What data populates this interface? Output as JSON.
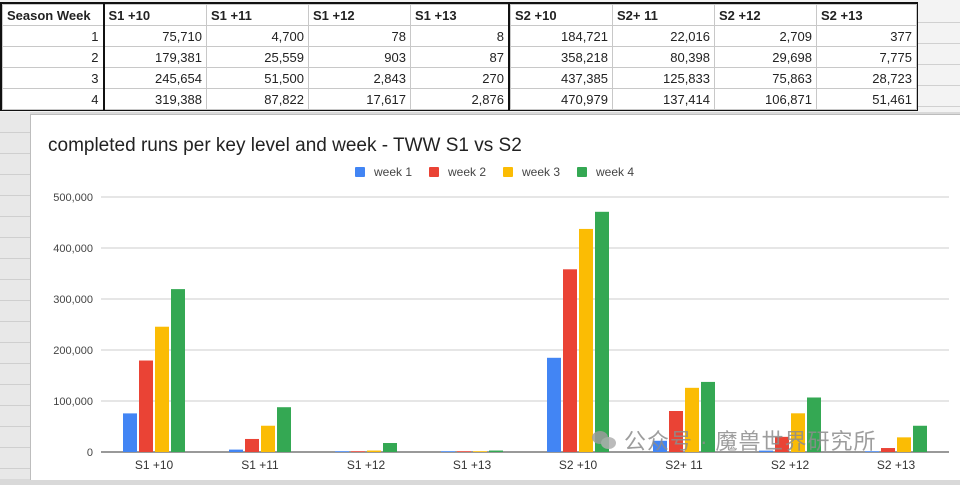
{
  "table": {
    "group1": {
      "headers": [
        "Season Week",
        "S1 +10",
        "S1 +11",
        "S1 +12",
        "S1 +13"
      ],
      "rows": [
        [
          "1",
          "75,710",
          "4,700",
          "78",
          "8"
        ],
        [
          "2",
          "179,381",
          "25,559",
          "903",
          "87"
        ],
        [
          "3",
          "245,654",
          "51,500",
          "2,843",
          "270"
        ],
        [
          "4",
          "319,388",
          "87,822",
          "17,617",
          "2,876"
        ]
      ]
    },
    "group2": {
      "headers": [
        "S2 +10",
        "S2+ 11",
        "S2 +12",
        "S2 +13"
      ],
      "rows": [
        [
          "184,721",
          "22,016",
          "2,709",
          "377"
        ],
        [
          "358,218",
          "80,398",
          "29,698",
          "7,775"
        ],
        [
          "437,385",
          "125,833",
          "75,863",
          "28,723"
        ],
        [
          "470,979",
          "137,414",
          "106,871",
          "51,461"
        ]
      ]
    }
  },
  "chart_data": {
    "type": "bar",
    "title": "completed runs per key level and week - TWW S1 vs S2",
    "xlabel": "",
    "ylabel": "",
    "ylim": [
      0,
      500000
    ],
    "yticks": [
      0,
      100000,
      200000,
      300000,
      400000,
      500000
    ],
    "ytick_labels": [
      "0",
      "100,000",
      "200,000",
      "300,000",
      "400,000",
      "500,000"
    ],
    "grid": true,
    "legend_position": "top-center",
    "categories": [
      "S1 +10",
      "S1 +11",
      "S1 +12",
      "S1 +13",
      "S2 +10",
      "S2+ 11",
      "S2 +12",
      "S2 +13"
    ],
    "series": [
      {
        "name": "week 1",
        "color": "#4285f4",
        "values": [
          75710,
          4700,
          78,
          8,
          184721,
          22016,
          2709,
          377
        ]
      },
      {
        "name": "week 2",
        "color": "#ea4335",
        "values": [
          179381,
          25559,
          903,
          87,
          358218,
          80398,
          29698,
          7775
        ]
      },
      {
        "name": "week 3",
        "color": "#fbbc04",
        "values": [
          245654,
          51500,
          2843,
          270,
          437385,
          125833,
          75863,
          28723
        ]
      },
      {
        "name": "week 4",
        "color": "#34a853",
        "values": [
          319388,
          87822,
          17617,
          2876,
          470979,
          137414,
          106871,
          51461
        ]
      }
    ]
  },
  "watermark": {
    "text": "公众号 · 魔兽世界研究所",
    "icon": "wechat-icon"
  }
}
